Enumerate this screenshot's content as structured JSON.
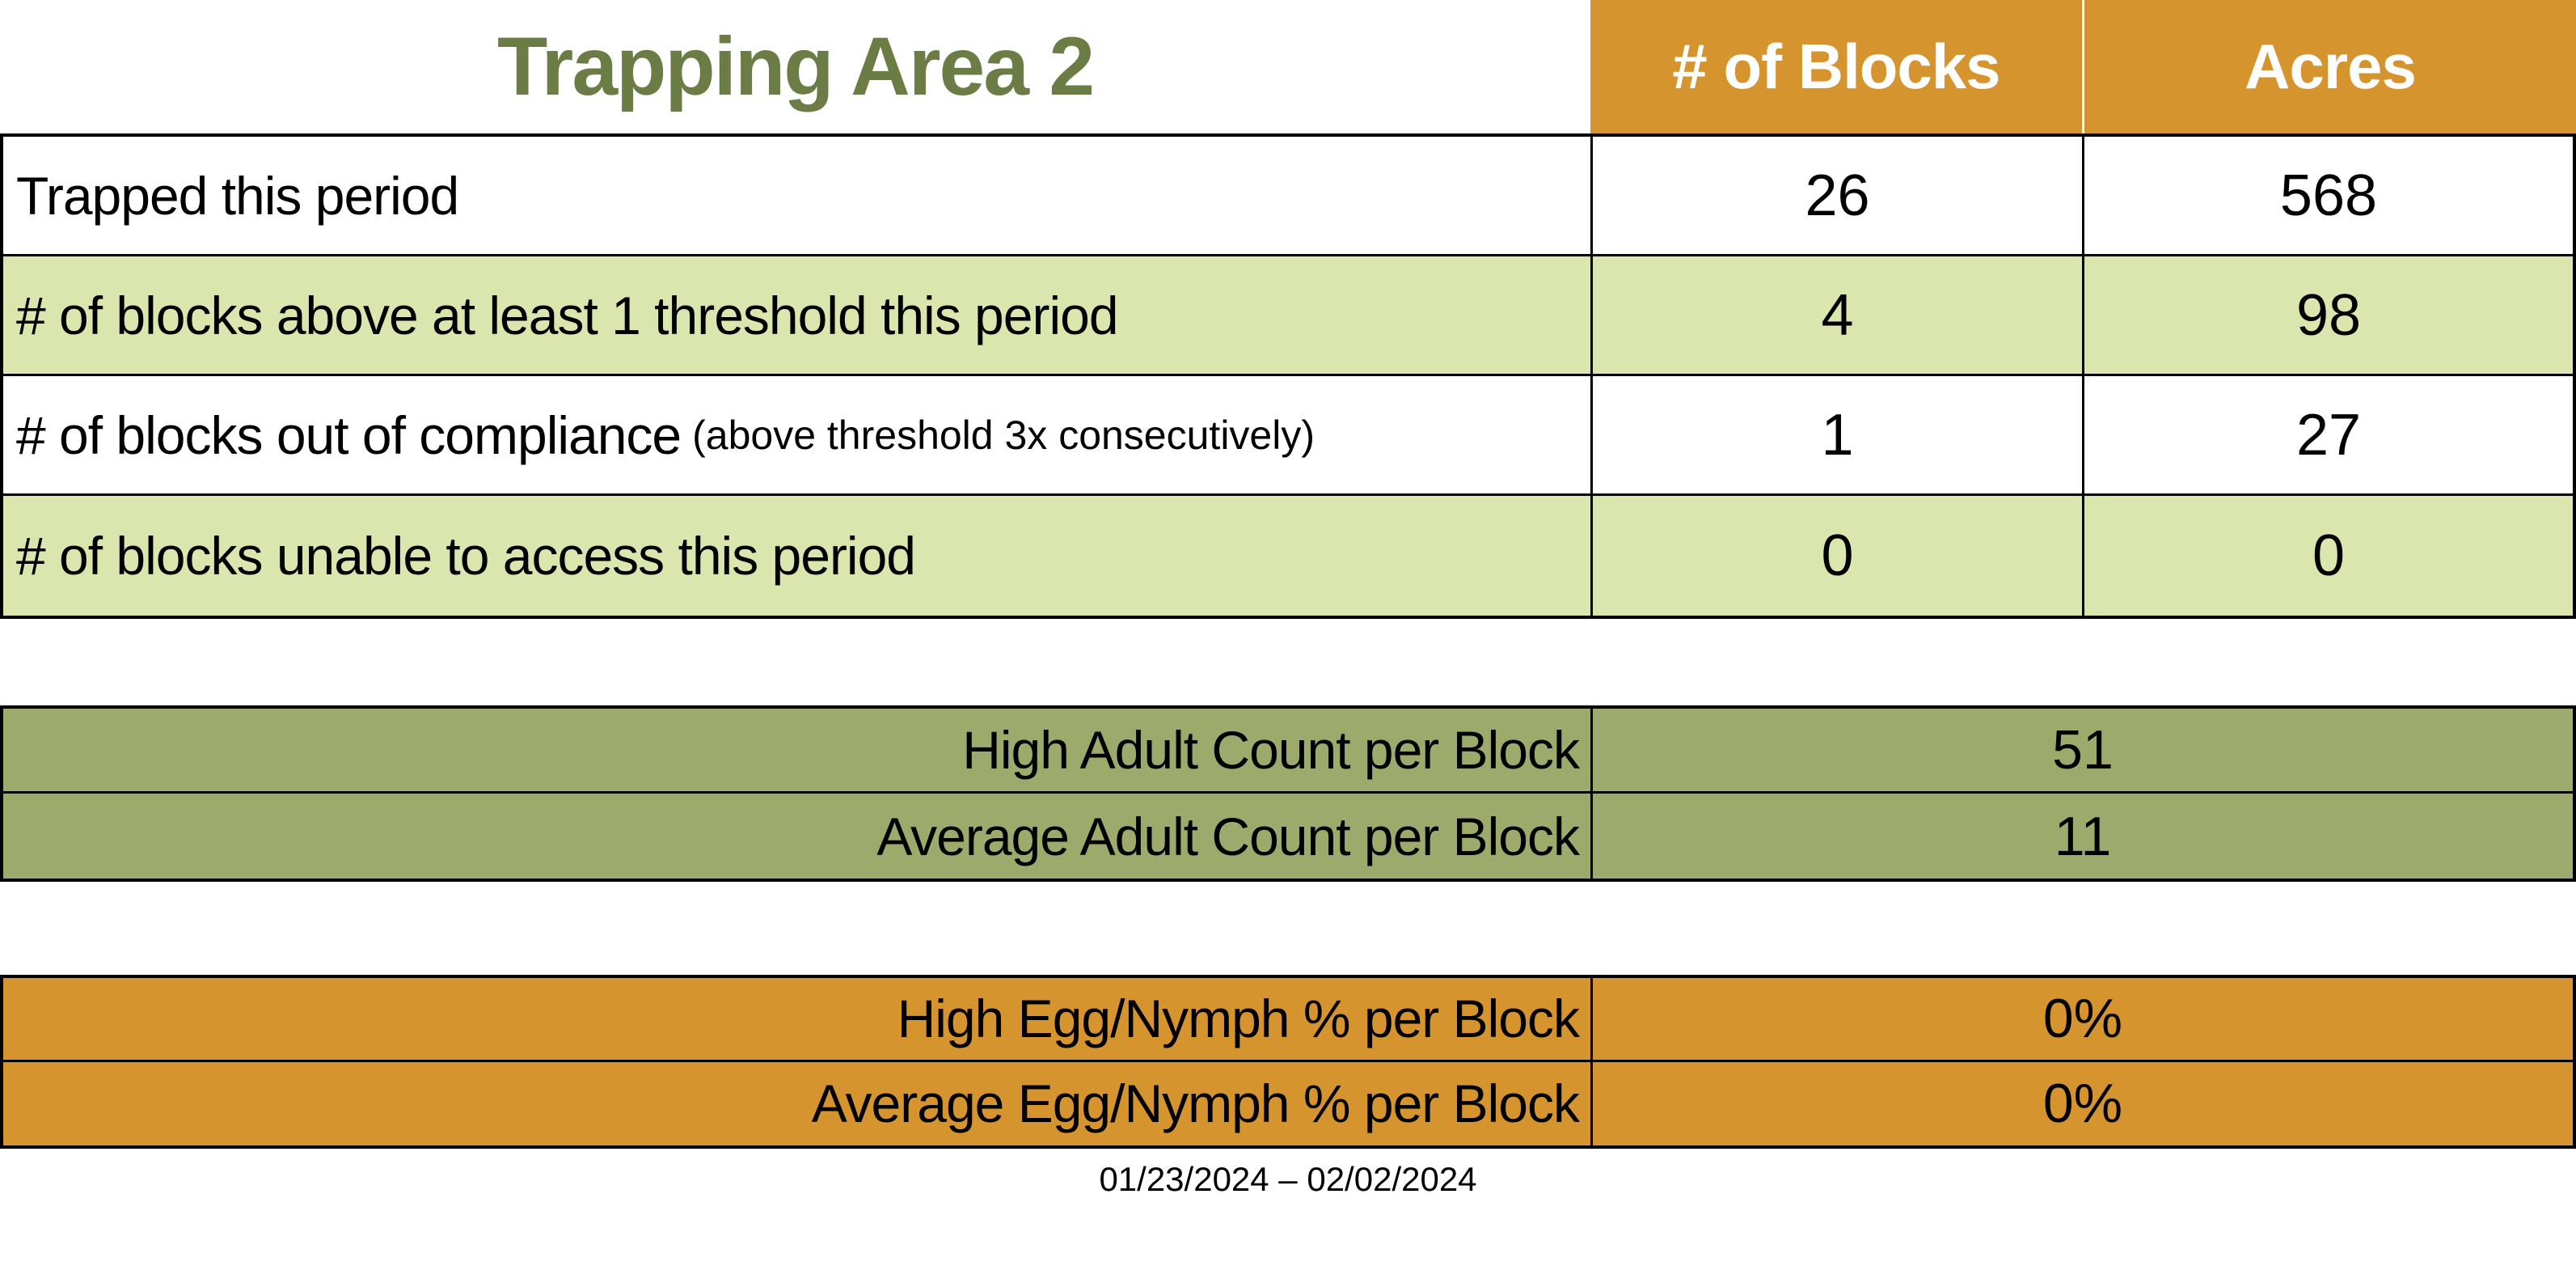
{
  "title": "Trapping Area 2",
  "colors": {
    "title_green": "#6B7C45",
    "header_orange": "#D6942F",
    "row_light_green": "#DBE5AE",
    "olive": "#9CAA6B",
    "border_black": "#000000",
    "header_text": "#ffffff",
    "text_black": "#000000"
  },
  "main_table": {
    "column_headers": {
      "blocks": "# of Blocks",
      "acres": "Acres"
    },
    "rows": [
      {
        "label": "Trapped this period",
        "note": "",
        "blocks": "26",
        "acres": "568"
      },
      {
        "label": "# of blocks above at least 1 threshold this period",
        "note": "",
        "blocks": "4",
        "acres": "98"
      },
      {
        "label": "# of blocks out of compliance",
        "note": "(above threshold 3x consecutively)",
        "blocks": "1",
        "acres": "27"
      },
      {
        "label": "# of blocks unable to access this period",
        "note": "",
        "blocks": "0",
        "acres": "0"
      }
    ]
  },
  "adult_table": {
    "rows": [
      {
        "label": "High Adult Count per Block",
        "value": "51"
      },
      {
        "label": "Average Adult Count per Block",
        "value": "11"
      }
    ]
  },
  "egg_table": {
    "rows": [
      {
        "label": "High Egg/Nymph % per Block",
        "value": "0%"
      },
      {
        "label": "Average Egg/Nymph % per Block",
        "value": "0%"
      }
    ]
  },
  "date_range": "01/23/2024 – 02/02/2024"
}
